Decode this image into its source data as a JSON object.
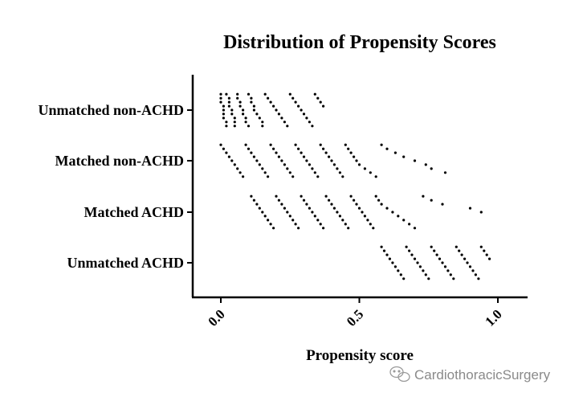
{
  "chart_data": {
    "type": "scatter",
    "title": "Distribution of Propensity Scores",
    "xlabel": "Propensity score",
    "ylabel": "",
    "xlim": [
      0,
      1.1
    ],
    "xticks": [
      "0.0",
      "0.5",
      "1.0"
    ],
    "grid": false,
    "point_color": "#000000",
    "categories": [
      "Unmatched non-ACHD",
      "Matched non-ACHD",
      "Matched ACHD",
      "Unmatched ACHD"
    ],
    "series": [
      {
        "x": [
          0.0,
          0.0,
          0.0,
          0.01,
          0.01,
          0.01,
          0.01,
          0.02,
          0.02,
          0.02,
          0.03,
          0.03,
          0.03,
          0.04,
          0.04,
          0.05,
          0.05,
          0.05,
          0.06,
          0.06,
          0.07,
          0.07,
          0.08,
          0.08,
          0.09,
          0.09,
          0.1,
          0.1,
          0.11,
          0.11,
          0.12,
          0.12,
          0.13,
          0.14,
          0.15,
          0.15,
          0.16,
          0.17,
          0.18,
          0.19,
          0.2,
          0.21,
          0.22,
          0.23,
          0.24,
          0.25,
          0.26,
          0.27,
          0.28,
          0.29,
          0.3,
          0.31,
          0.32,
          0.33,
          0.34,
          0.35,
          0.36,
          0.37
        ]
      },
      {
        "x": [
          0.0,
          0.01,
          0.02,
          0.03,
          0.04,
          0.05,
          0.06,
          0.07,
          0.08,
          0.09,
          0.1,
          0.11,
          0.12,
          0.13,
          0.14,
          0.15,
          0.16,
          0.17,
          0.18,
          0.19,
          0.2,
          0.21,
          0.22,
          0.23,
          0.24,
          0.25,
          0.26,
          0.27,
          0.28,
          0.29,
          0.3,
          0.31,
          0.32,
          0.33,
          0.34,
          0.35,
          0.36,
          0.37,
          0.38,
          0.39,
          0.4,
          0.41,
          0.42,
          0.43,
          0.44,
          0.45,
          0.46,
          0.47,
          0.48,
          0.49,
          0.5,
          0.52,
          0.54,
          0.56,
          0.58,
          0.6,
          0.63,
          0.66,
          0.7,
          0.74,
          0.76,
          0.81
        ]
      },
      {
        "x": [
          0.11,
          0.12,
          0.13,
          0.14,
          0.15,
          0.16,
          0.17,
          0.18,
          0.19,
          0.2,
          0.21,
          0.22,
          0.23,
          0.24,
          0.25,
          0.26,
          0.27,
          0.28,
          0.29,
          0.3,
          0.31,
          0.32,
          0.33,
          0.34,
          0.35,
          0.36,
          0.37,
          0.38,
          0.39,
          0.4,
          0.41,
          0.42,
          0.43,
          0.44,
          0.45,
          0.46,
          0.47,
          0.48,
          0.49,
          0.5,
          0.51,
          0.52,
          0.53,
          0.54,
          0.55,
          0.56,
          0.57,
          0.58,
          0.6,
          0.62,
          0.64,
          0.66,
          0.68,
          0.7,
          0.73,
          0.76,
          0.8,
          0.9,
          0.94
        ]
      },
      {
        "x": [
          0.58,
          0.59,
          0.6,
          0.61,
          0.62,
          0.63,
          0.64,
          0.65,
          0.66,
          0.67,
          0.68,
          0.69,
          0.7,
          0.71,
          0.72,
          0.73,
          0.74,
          0.75,
          0.76,
          0.77,
          0.78,
          0.79,
          0.8,
          0.81,
          0.82,
          0.83,
          0.84,
          0.85,
          0.86,
          0.87,
          0.88,
          0.89,
          0.9,
          0.91,
          0.92,
          0.93,
          0.94,
          0.95,
          0.96,
          0.97
        ]
      }
    ]
  },
  "watermark": {
    "text": "CardiothoracicSurgery",
    "icon": "wechat-icon"
  }
}
